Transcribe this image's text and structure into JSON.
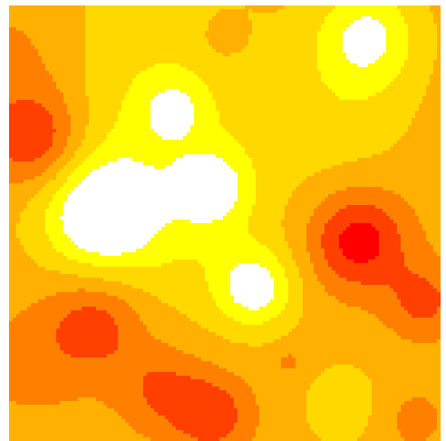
{
  "chart_data": {
    "type": "heatmap",
    "title": "",
    "xlabel": "",
    "ylabel": "",
    "colormap": "autumn",
    "colormap_stops": [
      "#ff0000",
      "#ff4000",
      "#ff8000",
      "#ffb000",
      "#ffd800",
      "#ffff00",
      "#ffffff"
    ],
    "levels": 7,
    "grid": false,
    "legend": "none",
    "x_range": [
      0,
      1
    ],
    "y_range": [
      0,
      1
    ],
    "background_level": 3.0,
    "features": [
      {
        "kind": "peak",
        "x": 0.83,
        "y": 0.07,
        "strength": 2.6,
        "spread": 0.085
      },
      {
        "kind": "peak",
        "x": 0.38,
        "y": 0.24,
        "strength": 1.6,
        "spread": 0.05
      },
      {
        "kind": "peak",
        "x": 0.21,
        "y": 0.48,
        "strength": 3.3,
        "spread": 0.09
      },
      {
        "kind": "peak",
        "x": 0.47,
        "y": 0.42,
        "strength": 2.2,
        "spread": 0.06
      },
      {
        "kind": "peak",
        "x": 0.57,
        "y": 0.65,
        "strength": 2.8,
        "spread": 0.065
      },
      {
        "kind": "peak",
        "x": 0.3,
        "y": 0.2,
        "strength": 1.4,
        "spread": 0.22
      },
      {
        "kind": "peak",
        "x": 0.4,
        "y": 0.5,
        "strength": 1.1,
        "spread": 0.16
      },
      {
        "kind": "peak",
        "x": 0.78,
        "y": 0.25,
        "strength": 0.9,
        "spread": 0.12
      },
      {
        "kind": "valley",
        "x": 0.06,
        "y": 0.31,
        "strength": 2.7,
        "spread": 0.08
      },
      {
        "kind": "valley",
        "x": 0.81,
        "y": 0.54,
        "strength": 3.1,
        "spread": 0.08
      },
      {
        "kind": "valley",
        "x": 0.2,
        "y": 0.73,
        "strength": 2.1,
        "spread": 0.08
      },
      {
        "kind": "valley",
        "x": 0.47,
        "y": 0.94,
        "strength": 2.2,
        "spread": 0.065
      },
      {
        "kind": "valley",
        "x": 0.35,
        "y": 0.88,
        "strength": 1.6,
        "spread": 0.07
      },
      {
        "kind": "valley",
        "x": 0.96,
        "y": 0.68,
        "strength": 1.8,
        "spread": 0.06
      },
      {
        "kind": "valley",
        "x": 0.5,
        "y": 0.07,
        "strength": 1.2,
        "spread": 0.03
      },
      {
        "kind": "valley",
        "x": 0.65,
        "y": 0.82,
        "strength": 0.9,
        "spread": 0.025
      },
      {
        "kind": "valley",
        "x": 0.03,
        "y": 0.13,
        "strength": 1.2,
        "spread": 0.12
      },
      {
        "kind": "valley",
        "x": 0.05,
        "y": 0.82,
        "strength": 0.8,
        "spread": 0.1
      },
      {
        "kind": "valley",
        "x": 0.93,
        "y": 0.95,
        "strength": 0.9,
        "spread": 0.06
      },
      {
        "kind": "peak",
        "x": 0.78,
        "y": 0.92,
        "strength": 1.0,
        "spread": 0.08
      }
    ]
  }
}
